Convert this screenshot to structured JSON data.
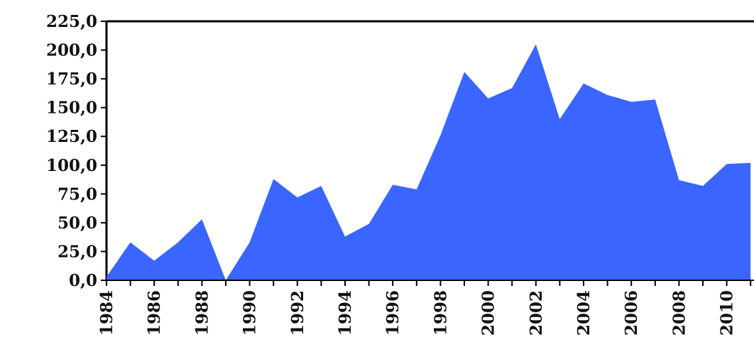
{
  "chart_data": {
    "type": "area",
    "title": "",
    "xlabel": "",
    "ylabel": "",
    "x": [
      1984,
      1985,
      1986,
      1987,
      1988,
      1989,
      1990,
      1991,
      1992,
      1993,
      1994,
      1995,
      1996,
      1997,
      1998,
      1999,
      2000,
      2001,
      2002,
      2003,
      2004,
      2005,
      2006,
      2007,
      2008,
      2009,
      2010,
      2011
    ],
    "values": [
      3.0,
      33.0,
      17.0,
      33.0,
      53.0,
      0.0,
      33.0,
      88.0,
      72.0,
      82.0,
      38.0,
      49.0,
      83.0,
      79.0,
      126.0,
      181.0,
      158.0,
      167.0,
      205.0,
      140.0,
      171.0,
      161.0,
      155.0,
      157.0,
      87.0,
      82.0,
      101.0,
      102.0
    ],
    "ylim": [
      0,
      225
    ],
    "yticks": [
      "0,0",
      "25,0",
      "50,0",
      "75,0",
      "100,0",
      "125,0",
      "150,0",
      "175,0",
      "200,0",
      "225,0"
    ],
    "xticks": [
      "1984",
      "1986",
      "1988",
      "1990",
      "1992",
      "1994",
      "1996",
      "1998",
      "2000",
      "2002",
      "2004",
      "2006",
      "2008",
      "2010"
    ],
    "grid": false,
    "legend": "none",
    "colors": {
      "fill": "#3a66ff",
      "frame": "#000000",
      "text": "#111111"
    }
  }
}
